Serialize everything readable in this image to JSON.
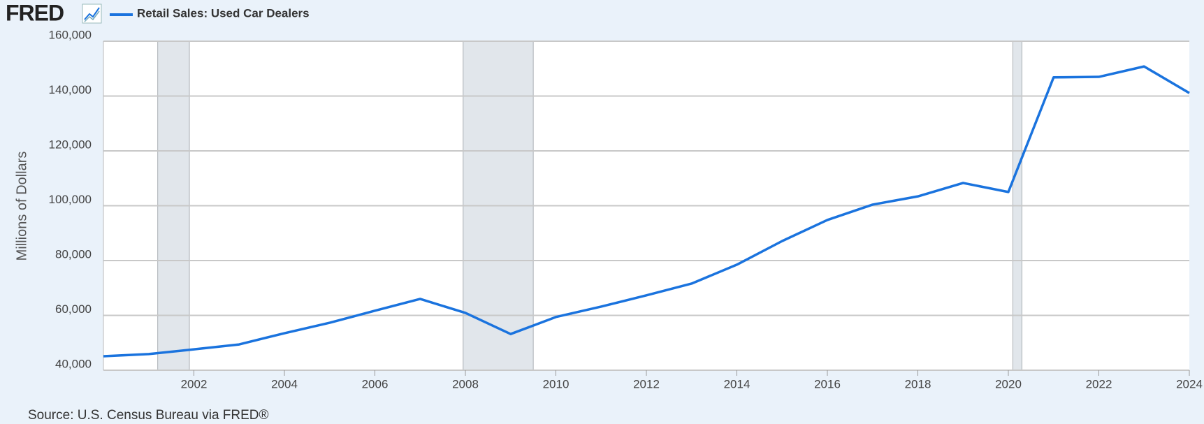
{
  "logo": "FRED",
  "chart_data": {
    "type": "line",
    "legend": "Retail Sales: Used Car Dealers",
    "y_label": "Millions of Dollars",
    "source": "Source: U.S. Census Bureau via FRED®",
    "x": [
      2000,
      2001,
      2002,
      2003,
      2004,
      2005,
      2006,
      2007,
      2008,
      2009,
      2010,
      2011,
      2012,
      2013,
      2014,
      2015,
      2016,
      2017,
      2018,
      2019,
      2020,
      2021,
      2022,
      2023,
      2024
    ],
    "series": [
      {
        "name": "Retail Sales: Used Car Dealers",
        "color": "#1a73de",
        "values": [
          45100,
          45900,
          47600,
          49400,
          53500,
          57300,
          61700,
          66000,
          60900,
          53200,
          59400,
          63200,
          67300,
          71600,
          78500,
          87100,
          94800,
          100400,
          103400,
          108300,
          105000,
          146800,
          147000,
          150800,
          141100
        ]
      }
    ],
    "xlim": [
      2000,
      2024
    ],
    "xticks": [
      2002,
      2004,
      2006,
      2008,
      2010,
      2012,
      2014,
      2016,
      2018,
      2020,
      2022,
      2024
    ],
    "ylim": [
      40000,
      160000
    ],
    "yticks": [
      {
        "value": 40000,
        "label": "40,000"
      },
      {
        "value": 60000,
        "label": "60,000"
      },
      {
        "value": 80000,
        "label": "80,000"
      },
      {
        "value": 100000,
        "label": "100,000"
      },
      {
        "value": 120000,
        "label": "120,000"
      },
      {
        "value": 140000,
        "label": "140,000"
      },
      {
        "value": 160000,
        "label": "160,000"
      }
    ],
    "grid": true,
    "shaded_periods": [
      [
        2001.2,
        2001.9
      ],
      [
        2007.95,
        2009.5
      ],
      [
        2020.1,
        2020.3
      ]
    ]
  }
}
